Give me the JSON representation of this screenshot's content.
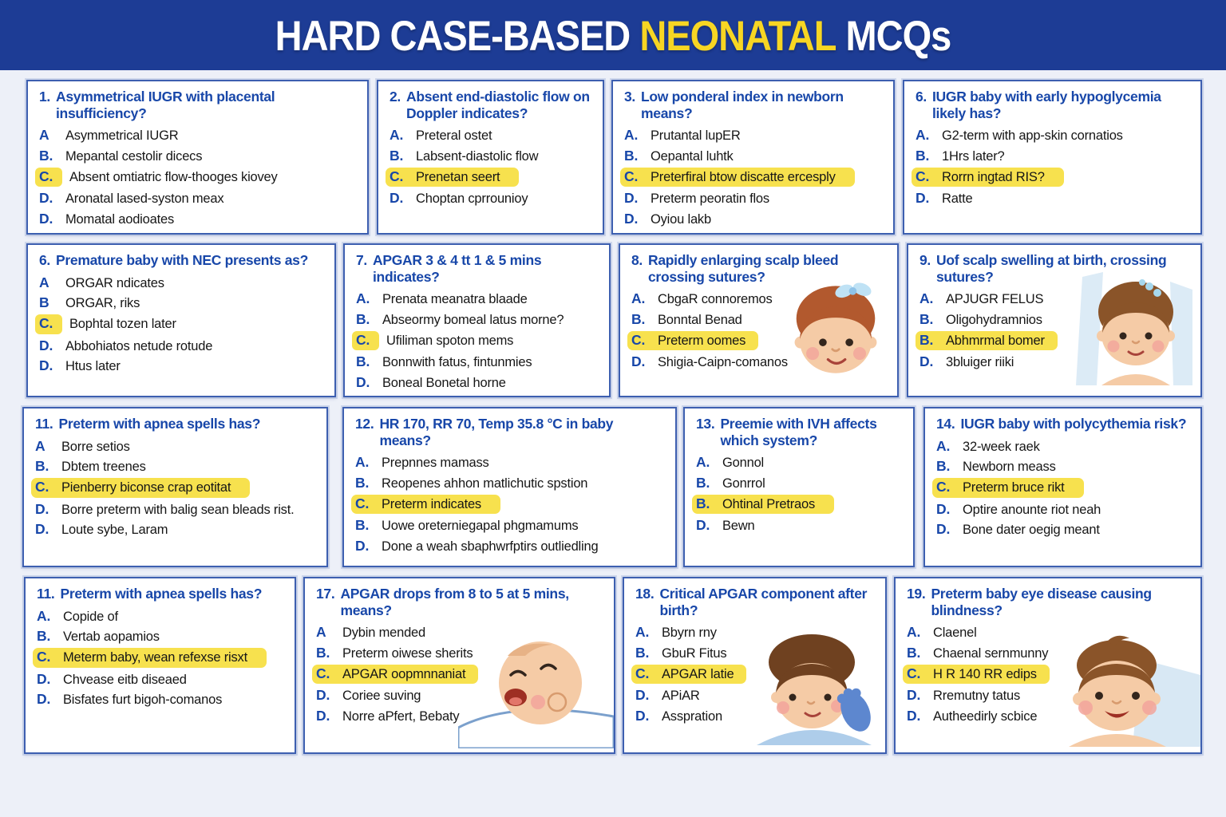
{
  "header": {
    "title_part1": "HARD CASE-BASED",
    "title_accent": "NEONATAL",
    "title_part2": "MCQs"
  },
  "colors": {
    "header_bg": "#1d3c95",
    "accent_yellow": "#f7d623",
    "question_blue": "#1847a9",
    "highlight_yellow": "#f7e14e",
    "card_border": "#3d5fb0",
    "page_bg": "#edf0f8",
    "option_text": "#161616"
  },
  "rows": [
    {
      "cards": [
        {
          "number": "1.",
          "question": "Asymmetrical IUGR with placental insufficiency?",
          "image": null,
          "options": [
            {
              "letter": "A",
              "text": "Asymmetrical IUGR",
              "highlight": "none"
            },
            {
              "letter": "B.",
              "text": "Mepantal cestolir dicecs",
              "highlight": "none"
            },
            {
              "letter": "C.",
              "text": "Absent omtiatric flow-thooges kiovey",
              "highlight": "letter"
            },
            {
              "letter": "D.",
              "text": "Aronatal lased-syston meax",
              "highlight": "none"
            },
            {
              "letter": "D.",
              "text": "Momatal aodioates",
              "highlight": "none"
            }
          ]
        },
        {
          "number": "2.",
          "question": "Absent end-diastolic flow on Doppler indicates?",
          "image": null,
          "options": [
            {
              "letter": "A.",
              "text": "Preteral ostet",
              "highlight": "none"
            },
            {
              "letter": "B.",
              "text": "Labsent-diastolic flow",
              "highlight": "none"
            },
            {
              "letter": "C.",
              "text": "Prenetan seert",
              "highlight": "line"
            },
            {
              "letter": "D.",
              "text": "Choptan cprrounioy",
              "highlight": "none"
            }
          ]
        },
        {
          "number": "3.",
          "question": "Low ponderal index in newborn means?",
          "image": null,
          "options": [
            {
              "letter": "A.",
              "text": "Prutantal lupER",
              "highlight": "none"
            },
            {
              "letter": "B.",
              "text": "Oepantal luhtk",
              "highlight": "none"
            },
            {
              "letter": "C.",
              "text": "Preterfiral btow discatte ercesply",
              "highlight": "line"
            },
            {
              "letter": "D.",
              "text": "Preterm peoratin flos",
              "highlight": "none"
            },
            {
              "letter": "D.",
              "text": "Oyiou lakb",
              "highlight": "none"
            }
          ]
        },
        {
          "number": "6.",
          "question": "IUGR baby with early hypoglycemia likely has?",
          "image": null,
          "options": [
            {
              "letter": "A.",
              "text": "G2-term with app-skin cornatios",
              "highlight": "none"
            },
            {
              "letter": "B.",
              "text": "1Hrs later?",
              "highlight": "none"
            },
            {
              "letter": "C.",
              "text": "Rorrn ingtad RIS?",
              "highlight": "line"
            },
            {
              "letter": "D.",
              "text": "Ratte",
              "highlight": "none"
            }
          ]
        }
      ]
    },
    {
      "cards": [
        {
          "number": "6.",
          "question": "Premature baby with NEC presents as?",
          "image": null,
          "options": [
            {
              "letter": "A",
              "text": "ORGAR ndicates",
              "highlight": "none"
            },
            {
              "letter": "B",
              "text": "ORGAR, riks",
              "highlight": "none"
            },
            {
              "letter": "C.",
              "text": "Bophtal tozen later",
              "highlight": "letter"
            },
            {
              "letter": "D.",
              "text": "Abbohiatos netude rotude",
              "highlight": "none"
            },
            {
              "letter": "D.",
              "text": "Htus later",
              "highlight": "none"
            }
          ]
        },
        {
          "number": "7.",
          "question": "APGAR 3 & 4 tt 1 & 5 mins indicates?",
          "image": null,
          "options": [
            {
              "letter": "A.",
              "text": "Prenata meanatra blaade",
              "highlight": "none"
            },
            {
              "letter": "B.",
              "text": "Abseormy bomeal latus morne?",
              "highlight": "none"
            },
            {
              "letter": "C.",
              "text": "Ufiliman spoton mems",
              "highlight": "letter"
            },
            {
              "letter": "B.",
              "text": "Bonnwith fatus, fintunmies",
              "highlight": "none"
            },
            {
              "letter": "D.",
              "text": "Boneal Bonetal horne",
              "highlight": "none"
            }
          ]
        },
        {
          "number": "8.",
          "question": "Rapidly enlarging scalp bleed crossing sutures?",
          "image": "baby-girl-bow",
          "options": [
            {
              "letter": "A.",
              "text": "CbgaR connoremos",
              "highlight": "none"
            },
            {
              "letter": "B.",
              "text": "Bonntal Benad",
              "highlight": "none"
            },
            {
              "letter": "C.",
              "text": "Preterm oomes",
              "highlight": "line"
            },
            {
              "letter": "D.",
              "text": "Shigia-Caipn-comanos",
              "highlight": "none"
            }
          ]
        },
        {
          "number": "9.",
          "question": "Uof scalp swelling at birth, crossing sutures?",
          "image": "baby-hairclips",
          "options": [
            {
              "letter": "A.",
              "text": "APJUGR FELUS",
              "highlight": "none"
            },
            {
              "letter": "B.",
              "text": "Oligohydramnios",
              "highlight": "none"
            },
            {
              "letter": "B.",
              "text": "Abhmrmal bomer",
              "highlight": "line"
            },
            {
              "letter": "D.",
              "text": "3bluiger riiki",
              "highlight": "none"
            }
          ]
        }
      ]
    },
    {
      "cards": [
        {
          "number": "11.",
          "question": "Preterm with apnea spells has?",
          "image": null,
          "options": [
            {
              "letter": "A",
              "text": "Borre setios",
              "highlight": "none"
            },
            {
              "letter": "B.",
              "text": "Dbtem treenes",
              "highlight": "none"
            },
            {
              "letter": "C.",
              "text": "Pienberry biconse crap eotitat",
              "highlight": "line"
            },
            {
              "letter": "D.",
              "text": "Borre preterm with balig sean bleads rist.",
              "highlight": "none"
            },
            {
              "letter": "D.",
              "text": "Loute sybe, Laram",
              "highlight": "none"
            }
          ]
        },
        {
          "number": "12.",
          "question": "HR 170, RR 70, Temp 35.8 °C in baby means?",
          "image": null,
          "options": [
            {
              "letter": "A.",
              "text": "Prepnnes mamass",
              "highlight": "none"
            },
            {
              "letter": "B.",
              "text": "Reopenes ahhon matlichutic spstion",
              "highlight": "none"
            },
            {
              "letter": "C.",
              "text": "Preterm indicates",
              "highlight": "line"
            },
            {
              "letter": "B.",
              "text": "Uowe oreterniegapal phgmamums",
              "highlight": "none"
            },
            {
              "letter": "D.",
              "text": "Done a weah sbaphwrfptirs outliedling",
              "highlight": "none"
            }
          ]
        },
        {
          "number": "13.",
          "question": "Preemie with IVH affects which system?",
          "image": null,
          "options": [
            {
              "letter": "A.",
              "text": "Gonnol",
              "highlight": "none"
            },
            {
              "letter": "B.",
              "text": "Gonrrol",
              "highlight": "none"
            },
            {
              "letter": "B.",
              "text": "Ohtinal Pretraos",
              "highlight": "line"
            },
            {
              "letter": "D.",
              "text": "Bewn",
              "highlight": "none"
            }
          ]
        },
        {
          "number": "14.",
          "question": "IUGR baby with polycythemia risk?",
          "image": null,
          "options": [
            {
              "letter": "A.",
              "text": "32-week raek",
              "highlight": "none"
            },
            {
              "letter": "B.",
              "text": "Newborn meass",
              "highlight": "none"
            },
            {
              "letter": "C.",
              "text": "Preterm bruce rikt",
              "highlight": "line"
            },
            {
              "letter": "D.",
              "text": "Optire anounte riot neah",
              "highlight": "none"
            },
            {
              "letter": "D.",
              "text": "Bone dater oegig meant",
              "highlight": "none"
            }
          ]
        }
      ]
    },
    {
      "cards": [
        {
          "number": "11.",
          "question": "Preterm with apnea spells has?",
          "image": null,
          "options": [
            {
              "letter": "A.",
              "text": "Copide of",
              "highlight": "none"
            },
            {
              "letter": "B.",
              "text": "Vertab aopamios",
              "highlight": "none"
            },
            {
              "letter": "C.",
              "text": "Meterm baby, wean refexse risxt",
              "highlight": "line"
            },
            {
              "letter": "D.",
              "text": "Chvease eitb diseaed",
              "highlight": "none"
            },
            {
              "letter": "D.",
              "text": "Bisfates furt bigoh-comanos",
              "highlight": "none"
            }
          ]
        },
        {
          "number": "17.",
          "question": "APGAR drops from 8 to 5 at 5 mins, means?",
          "image": "laughing-baby",
          "options": [
            {
              "letter": "A",
              "text": "Dybin mended",
              "highlight": "none"
            },
            {
              "letter": "B.",
              "text": "Preterm oiwese sherits",
              "highlight": "none"
            },
            {
              "letter": "C.",
              "text": "APGAR oopmnnaniat",
              "highlight": "line"
            },
            {
              "letter": "D.",
              "text": "Coriee suving",
              "highlight": "none"
            },
            {
              "letter": "D.",
              "text": "Norre aPfert, Bebaty",
              "highlight": "none"
            }
          ]
        },
        {
          "number": "18.",
          "question": "Critical APGAR component after birth?",
          "image": "boy-gloved-hand",
          "options": [
            {
              "letter": "A.",
              "text": "Bbyrn rny",
              "highlight": "none"
            },
            {
              "letter": "B.",
              "text": "GbuR Fitus",
              "highlight": "none"
            },
            {
              "letter": "C.",
              "text": "APGAR latie",
              "highlight": "line"
            },
            {
              "letter": "D.",
              "text": "APiAR",
              "highlight": "none"
            },
            {
              "letter": "D.",
              "text": "Asspration",
              "highlight": "none"
            }
          ]
        },
        {
          "number": "19.",
          "question": "Preterm baby eye disease causing blindness?",
          "image": "smiling-baby",
          "options": [
            {
              "letter": "A.",
              "text": "Claenel",
              "highlight": "none"
            },
            {
              "letter": "B.",
              "text": "Chaenal sernmunny",
              "highlight": "none"
            },
            {
              "letter": "C.",
              "text": "H R 140 RR edips",
              "highlight": "line"
            },
            {
              "letter": "D.",
              "text": "Rremutny tatus",
              "highlight": "none"
            },
            {
              "letter": "D.",
              "text": "Autheedirly scbice",
              "highlight": "none"
            }
          ]
        }
      ]
    }
  ]
}
